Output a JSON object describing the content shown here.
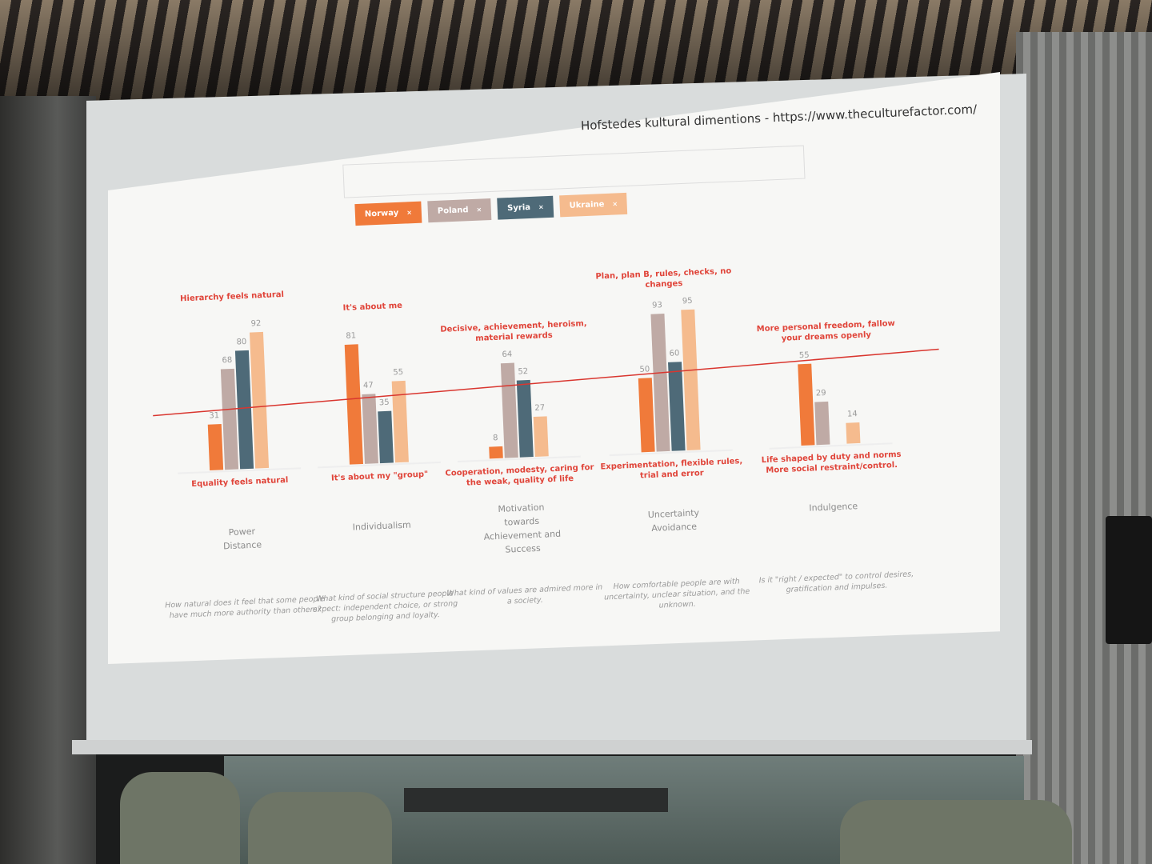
{
  "slide": {
    "title": "Hofstedes kultural dimentions - https://www.theculturefactor.com/",
    "legend_close_glyph": "×"
  },
  "colors": {
    "Norway": "#f07a3a",
    "Poland": "#bfaaa5",
    "Syria": "#4e6a78",
    "Ukraine": "#f5bb8e",
    "annotation": "#e0453a",
    "reference_line": "#d9362f"
  },
  "chart_data": {
    "type": "bar",
    "categories": [
      "Power Distance",
      "Individualism",
      "Motivation towards Achievement and Success",
      "Uncertainty Avoidance",
      "Indulgence"
    ],
    "series": [
      {
        "name": "Norway",
        "values": [
          31,
          81,
          8,
          50,
          55
        ]
      },
      {
        "name": "Poland",
        "values": [
          68,
          47,
          64,
          93,
          29
        ]
      },
      {
        "name": "Syria",
        "values": [
          80,
          35,
          52,
          60,
          null
        ]
      },
      {
        "name": "Ukraine",
        "values": [
          92,
          55,
          27,
          95,
          14
        ]
      }
    ],
    "ylim": [
      0,
      100
    ],
    "reference_line": "horizontal red line across all groups",
    "grid": false,
    "legend_placement": "top",
    "groups": [
      {
        "dim_lines": [
          "Power",
          "Distance"
        ],
        "top": "Hierarchy feels natural",
        "bottom": "Equality feels natural",
        "desc": "How natural does it feel that some people have much more authority than others?"
      },
      {
        "dim_lines": [
          "Individualism"
        ],
        "top": "It's about me",
        "bottom": "It's about my \"group\"",
        "desc": "What kind of social structure people expect: independent choice, or strong group belonging and loyalty."
      },
      {
        "dim_lines": [
          "Motivation",
          "towards",
          "Achievement and",
          "Success"
        ],
        "top": "Decisive, achievement, heroism, material rewards",
        "bottom": "Cooperation, modesty, caring for the weak, quality of life",
        "desc": "What kind of values are admired more in a society."
      },
      {
        "dim_lines": [
          "Uncertainty",
          "Avoidance"
        ],
        "top": "Plan, plan B, rules, checks, no changes",
        "bottom": "Experimentation, flexible rules, trial and error",
        "desc": "How comfortable people are with uncertainty, unclear situation, and the unknown."
      },
      {
        "dim_lines": [
          "Indulgence"
        ],
        "top": "More personal freedom, fallow your dreams openly",
        "bottom": "Life shaped by duty and norms More social restraint/control.",
        "desc": "Is it \"right / expected\" to control desires, gratification and impulses."
      }
    ]
  }
}
